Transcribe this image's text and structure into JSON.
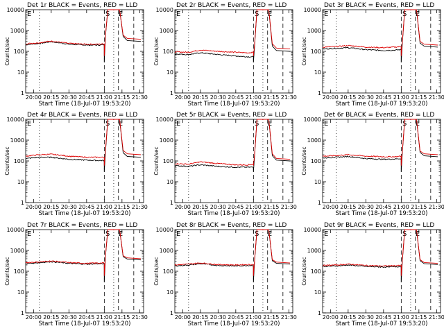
{
  "colors": {
    "events": "#000000",
    "lld": "#dd0000",
    "axes": "#000000",
    "background": "#ffffff"
  },
  "common": {
    "ylabel": "Counts/sec",
    "xlabel": "Start Time (18-Jul-07 19:53:20)",
    "x_ticks": [
      "20:00",
      "20:15",
      "20:30",
      "20:45",
      "21:00",
      "21:15",
      "21:30"
    ],
    "y_ticks": [
      "1",
      "10",
      "100",
      "1000",
      "10000"
    ],
    "marker_s": "S",
    "marker_e": "E"
  },
  "chart_data": [
    {
      "type": "line",
      "title": "Det 1r BLACK = Events, RED = LLD",
      "series": [
        {
          "values_before": [
            210,
            240,
            290,
            220,
            200,
            200,
            210
          ],
          "values_after": [
            520,
            300
          ]
        },
        {
          "values_before": [
            230,
            260,
            310,
            240,
            220,
            220,
            230
          ],
          "values_after": [
            600,
            380
          ]
        }
      ],
      "x_times": [
        "19:53:20",
        "20:05",
        "20:15",
        "20:30",
        "20:45",
        "20:55",
        "21:00"
      ],
      "ylim": [
        1,
        10000
      ],
      "scale": "log"
    },
    {
      "type": "line",
      "title": "Det 2r BLACK = Events, RED = LLD",
      "series": [
        {
          "values_before": [
            75,
            70,
            85,
            70,
            60,
            55,
            55
          ],
          "values_after": [
            180,
            100
          ]
        },
        {
          "values_before": [
            95,
            90,
            115,
            100,
            90,
            85,
            90
          ],
          "values_after": [
            230,
            130
          ]
        }
      ],
      "x_times": [
        "19:53:20",
        "20:05",
        "20:15",
        "20:30",
        "20:45",
        "20:55",
        "21:00"
      ],
      "ylim": [
        1,
        10000
      ],
      "scale": "log"
    },
    {
      "type": "line",
      "title": "Det 3r BLACK = Events, RED = LLD",
      "series": [
        {
          "values_before": [
            130,
            140,
            150,
            120,
            110,
            115,
            120
          ],
          "values_after": [
            250,
            160
          ]
        },
        {
          "values_before": [
            160,
            170,
            190,
            160,
            150,
            160,
            170
          ],
          "values_after": [
            300,
            200
          ]
        }
      ],
      "x_times": [
        "19:53:20",
        "20:05",
        "20:15",
        "20:30",
        "20:45",
        "20:55",
        "21:00"
      ],
      "ylim": [
        1,
        10000
      ],
      "scale": "log"
    },
    {
      "type": "line",
      "title": "Det 4r BLACK = Events, RED = LLD",
      "series": [
        {
          "values_before": [
            130,
            150,
            150,
            120,
            110,
            105,
            105
          ],
          "values_after": [
            250,
            150
          ]
        },
        {
          "values_before": [
            170,
            200,
            210,
            170,
            150,
            150,
            150
          ],
          "values_after": [
            320,
            200
          ]
        }
      ],
      "x_times": [
        "19:53:20",
        "20:05",
        "20:15",
        "20:30",
        "20:45",
        "20:55",
        "21:00"
      ],
      "ylim": [
        1,
        10000
      ],
      "scale": "log"
    },
    {
      "type": "line",
      "title": "Det 5r BLACK = Events, RED = LLD",
      "series": [
        {
          "values_before": [
            60,
            55,
            65,
            55,
            50,
            50,
            50
          ],
          "values_after": [
            180,
            100
          ]
        },
        {
          "values_before": [
            75,
            70,
            90,
            75,
            65,
            65,
            70
          ],
          "values_after": [
            220,
            120
          ]
        }
      ],
      "x_times": [
        "19:53:20",
        "20:05",
        "20:15",
        "20:30",
        "20:45",
        "20:55",
        "21:00"
      ],
      "ylim": [
        1,
        10000
      ],
      "scale": "log"
    },
    {
      "type": "line",
      "title": "Det 6r BLACK = Events, RED = LLD",
      "series": [
        {
          "values_before": [
            140,
            150,
            165,
            130,
            120,
            125,
            130
          ],
          "values_after": [
            260,
            160
          ]
        },
        {
          "values_before": [
            170,
            180,
            200,
            170,
            160,
            160,
            170
          ],
          "values_after": [
            300,
            200
          ]
        }
      ],
      "x_times": [
        "19:53:20",
        "20:05",
        "20:15",
        "20:30",
        "20:45",
        "20:55",
        "21:00"
      ],
      "ylim": [
        1,
        10000
      ],
      "scale": "log"
    },
    {
      "type": "line",
      "title": "Det 7r BLACK = Events, RED = LLD",
      "series": [
        {
          "values_before": [
            230,
            260,
            290,
            240,
            220,
            230,
            230
          ],
          "values_after": [
            500,
            350
          ]
        },
        {
          "values_before": [
            260,
            280,
            310,
            260,
            240,
            250,
            250
          ],
          "values_after": [
            560,
            400
          ]
        }
      ],
      "x_times": [
        "19:53:20",
        "20:05",
        "20:15",
        "20:30",
        "20:45",
        "20:55",
        "21:00"
      ],
      "ylim": [
        1,
        10000
      ],
      "scale": "log"
    },
    {
      "type": "line",
      "title": "Det 8r BLACK = Events, RED = LLD",
      "series": [
        {
          "values_before": [
            180,
            200,
            230,
            190,
            180,
            190,
            190
          ],
          "values_after": [
            320,
            220
          ]
        },
        {
          "values_before": [
            200,
            220,
            250,
            210,
            200,
            210,
            210
          ],
          "values_after": [
            360,
            250
          ]
        }
      ],
      "x_times": [
        "19:53:20",
        "20:05",
        "20:15",
        "20:30",
        "20:45",
        "20:55",
        "21:00"
      ],
      "ylim": [
        1,
        10000
      ],
      "scale": "log"
    },
    {
      "type": "line",
      "title": "Det 9r BLACK = Events, RED = LLD",
      "series": [
        {
          "values_before": [
            170,
            180,
            200,
            170,
            160,
            165,
            170
          ],
          "values_after": [
            320,
            210
          ]
        },
        {
          "values_before": [
            190,
            200,
            220,
            190,
            180,
            185,
            190
          ],
          "values_after": [
            360,
            240
          ]
        }
      ],
      "x_times": [
        "19:53:20",
        "20:05",
        "20:15",
        "20:30",
        "20:45",
        "20:55",
        "21:00"
      ],
      "ylim": [
        1,
        10000
      ],
      "scale": "log"
    }
  ]
}
